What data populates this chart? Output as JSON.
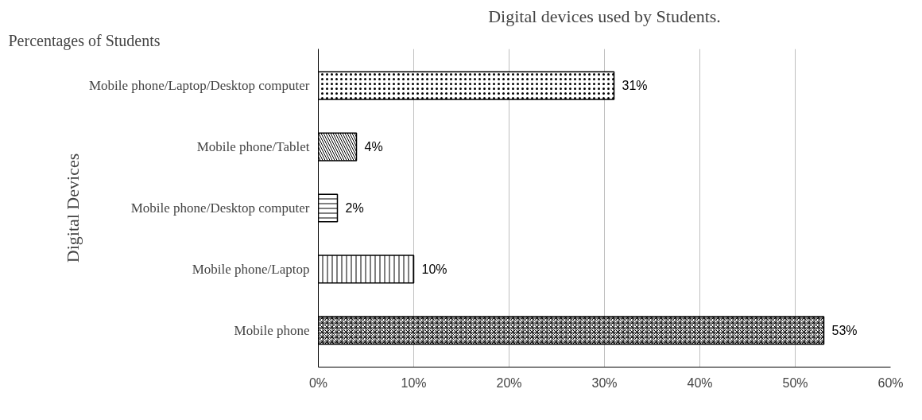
{
  "chart_data": {
    "type": "bar",
    "orientation": "horizontal",
    "title": "Digital devices used by Students.",
    "xlabel": "Percentages of Students",
    "ylabel": "Digital Devices",
    "categories": [
      "Mobile phone/Laptop/Desktop computer",
      "Mobile phone/Tablet",
      "Mobile phone/Desktop computer",
      "Mobile phone/Laptop",
      "Mobile phone"
    ],
    "values": [
      31,
      4,
      2,
      10,
      53
    ],
    "value_labels": [
      "31%",
      "4%",
      "2%",
      "10%",
      "53%"
    ],
    "color": "#000000",
    "xlim": [
      0,
      60
    ],
    "xticks": [
      {
        "value": 0,
        "label": "0%"
      },
      {
        "value": 10,
        "label": "10%"
      },
      {
        "value": 20,
        "label": "20%"
      },
      {
        "value": 30,
        "label": "30%"
      },
      {
        "value": 40,
        "label": "40%"
      },
      {
        "value": 50,
        "label": "50%"
      },
      {
        "value": 60,
        "label": "60%"
      }
    ],
    "grid": "x"
  }
}
